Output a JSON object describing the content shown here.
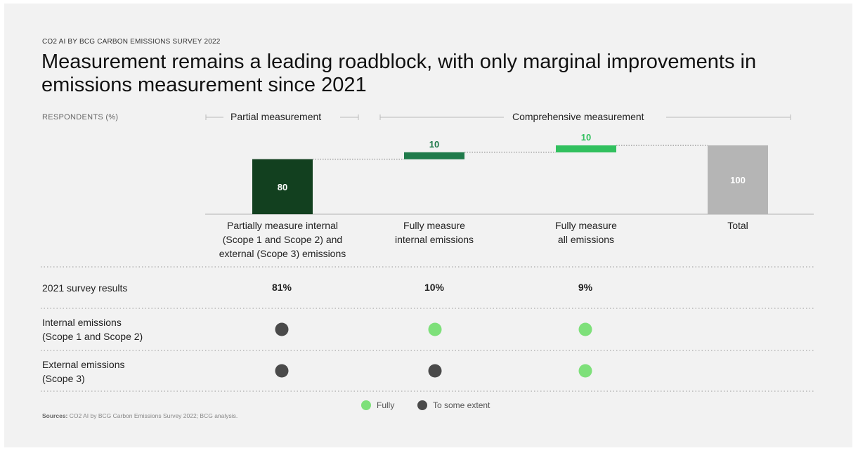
{
  "kicker": "CO2 AI BY BCG CARBON EMISSIONS SURVEY 2022",
  "title": "Measurement remains a leading roadblock, with only marginal improvements in emissions measurement since 2021",
  "ylabel": "RESPONDENTS (%)",
  "groups": {
    "partial": "Partial measurement",
    "comprehensive": "Comprehensive measurement"
  },
  "chart_data": {
    "type": "bar",
    "subtype": "waterfall",
    "categories": [
      "Partially measure internal\n(Scope 1 and Scope 2) and\nexternal (Scope 3) emissions",
      "Fully measure\ninternal emissions",
      "Fully measure\nall emissions",
      "Total"
    ],
    "values": [
      80,
      10,
      10,
      100
    ],
    "value_labels": [
      "80",
      "10",
      "10",
      "100"
    ],
    "colors": [
      "#12401f",
      "#1f7a4a",
      "#31c05e",
      "#b5b5b5"
    ],
    "ylim": [
      0,
      100
    ],
    "grid": false
  },
  "table": {
    "rows": [
      {
        "label": "2021 survey results",
        "values": [
          "81%",
          "10%",
          "9%"
        ]
      },
      {
        "label": "Internal emissions\n(Scope 1 and Scope 2)",
        "dots": [
          "extent",
          "fully",
          "fully"
        ]
      },
      {
        "label": "External emissions\n(Scope 3)",
        "dots": [
          "extent",
          "extent",
          "fully"
        ]
      }
    ]
  },
  "legend": {
    "fully": "Fully",
    "extent": "To some extent"
  },
  "dot_colors": {
    "fully": "#7ee07a",
    "extent": "#4a4a4a"
  },
  "sources_label": "Sources:",
  "sources_text": "CO2 AI by BCG Carbon Emissions Survey 2022; BCG analysis."
}
